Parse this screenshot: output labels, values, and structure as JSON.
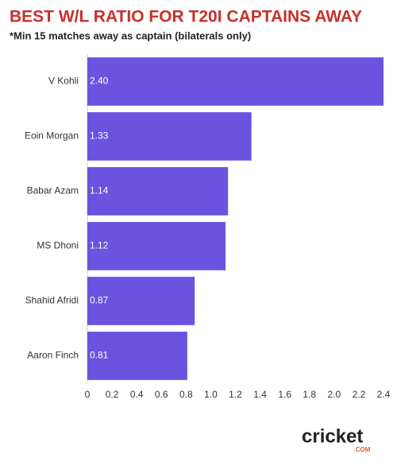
{
  "chart_data": {
    "type": "bar",
    "orientation": "horizontal",
    "title": "BEST W/L RATIO FOR T20I CAPTAINS AWAY",
    "subtitle": "*Min 15 matches away as captain (bilaterals only)",
    "categories": [
      "V Kohli",
      "Eoin Morgan",
      "Babar Azam",
      "MS Dhoni",
      "Shahid Afridi",
      "Aaron Finch"
    ],
    "values": [
      2.4,
      1.33,
      1.14,
      1.12,
      0.87,
      0.81
    ],
    "value_labels": [
      "2.40",
      "1.33",
      "1.14",
      "1.12",
      "0.87",
      "0.81"
    ],
    "color": "#6b52df",
    "xlim": [
      0,
      2.4
    ],
    "xticks": [
      0,
      {
        "value": 0.2,
        "label": "0.2"
      },
      {
        "value": 0.4,
        "label": "0.4"
      },
      {
        "value": 0.6,
        "label": "0.6"
      },
      {
        "value": 0.8,
        "label": "0.8"
      },
      {
        "value": 1.0,
        "label": "1.0"
      },
      {
        "value": 1.2,
        "label": "1.2"
      },
      {
        "value": 1.4,
        "label": "1.4"
      },
      {
        "value": 1.6,
        "label": "1.6"
      },
      {
        "value": 1.8,
        "label": "1.8"
      },
      {
        "value": 2.0,
        "label": "2.0"
      },
      {
        "value": 2.2,
        "label": "2.2"
      },
      {
        "value": 2.4,
        "label": "2.4"
      }
    ],
    "grid": false,
    "logo": "cricket",
    "logo_sub": ".COM"
  }
}
